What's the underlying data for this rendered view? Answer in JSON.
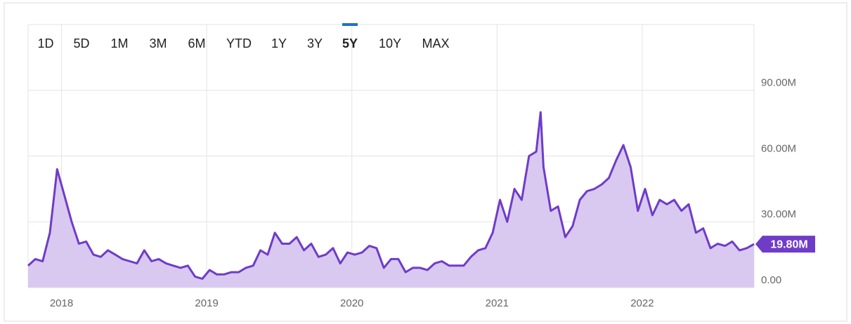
{
  "chart_data": {
    "type": "area",
    "range_buttons": [
      "1D",
      "5D",
      "1M",
      "3M",
      "6M",
      "YTD",
      "1Y",
      "3Y",
      "5Y",
      "10Y",
      "MAX"
    ],
    "selected_range": "5Y",
    "color": "#6f3cc8",
    "fill_color": "#d9c9f1",
    "selected_color": "#1f74c2",
    "grid": true,
    "x": [
      2017.77,
      2017.82,
      2017.87,
      2017.92,
      2017.97,
      2018.02,
      2018.07,
      2018.12,
      2018.17,
      2018.22,
      2018.27,
      2018.32,
      2018.37,
      2018.42,
      2018.47,
      2018.52,
      2018.57,
      2018.62,
      2018.67,
      2018.72,
      2018.77,
      2018.82,
      2018.87,
      2018.92,
      2018.97,
      2019.02,
      2019.07,
      2019.12,
      2019.17,
      2019.22,
      2019.27,
      2019.32,
      2019.37,
      2019.42,
      2019.47,
      2019.52,
      2019.57,
      2019.62,
      2019.67,
      2019.72,
      2019.77,
      2019.82,
      2019.87,
      2019.92,
      2019.97,
      2020.02,
      2020.07,
      2020.12,
      2020.17,
      2020.22,
      2020.27,
      2020.32,
      2020.37,
      2020.42,
      2020.47,
      2020.52,
      2020.57,
      2020.62,
      2020.67,
      2020.72,
      2020.77,
      2020.82,
      2020.87,
      2020.92,
      2020.97,
      2021.02,
      2021.07,
      2021.12,
      2021.17,
      2021.22,
      2021.27,
      2021.3,
      2021.32,
      2021.37,
      2021.42,
      2021.47,
      2021.52,
      2021.57,
      2021.62,
      2021.67,
      2021.72,
      2021.77,
      2021.82,
      2021.87,
      2021.92,
      2021.97,
      2022.02,
      2022.07,
      2022.12,
      2022.17,
      2022.22,
      2022.27,
      2022.32,
      2022.37,
      2022.42,
      2022.47,
      2022.52,
      2022.57,
      2022.62,
      2022.67,
      2022.72,
      2022.77
    ],
    "values": [
      10,
      13,
      12,
      25,
      54,
      42,
      30,
      20,
      21,
      15,
      14,
      17,
      15,
      13,
      12,
      11,
      17,
      12,
      13,
      11,
      10,
      9,
      10,
      5,
      4,
      8,
      6,
      6,
      7,
      7,
      9,
      10,
      17,
      15,
      25,
      20,
      20,
      23,
      17,
      20,
      14,
      15,
      18,
      11,
      16,
      15,
      16,
      19,
      18,
      9,
      13,
      13,
      7,
      9,
      9,
      8,
      11,
      12,
      10,
      10,
      10,
      14,
      17,
      18,
      25,
      40,
      30,
      45,
      40,
      60,
      62,
      80,
      55,
      35,
      37,
      23,
      28,
      40,
      44,
      45,
      47,
      50,
      58,
      65,
      55,
      35,
      45,
      33,
      40,
      38,
      40,
      35,
      38,
      25,
      27,
      18,
      20,
      19,
      21,
      17,
      18,
      19.8
    ],
    "current_value": {
      "value": 19.8,
      "label": "19.80M"
    },
    "xlim": [
      2017.77,
      2022.77
    ],
    "xticks": [
      2018,
      2019,
      2020,
      2021,
      2022
    ],
    "ylim": [
      0,
      120
    ],
    "yticks": [
      {
        "value": 0,
        "label": "0.00"
      },
      {
        "value": 30,
        "label": "30.00M"
      },
      {
        "value": 60,
        "label": "60.00M"
      },
      {
        "value": 90,
        "label": "90.00M"
      }
    ]
  }
}
